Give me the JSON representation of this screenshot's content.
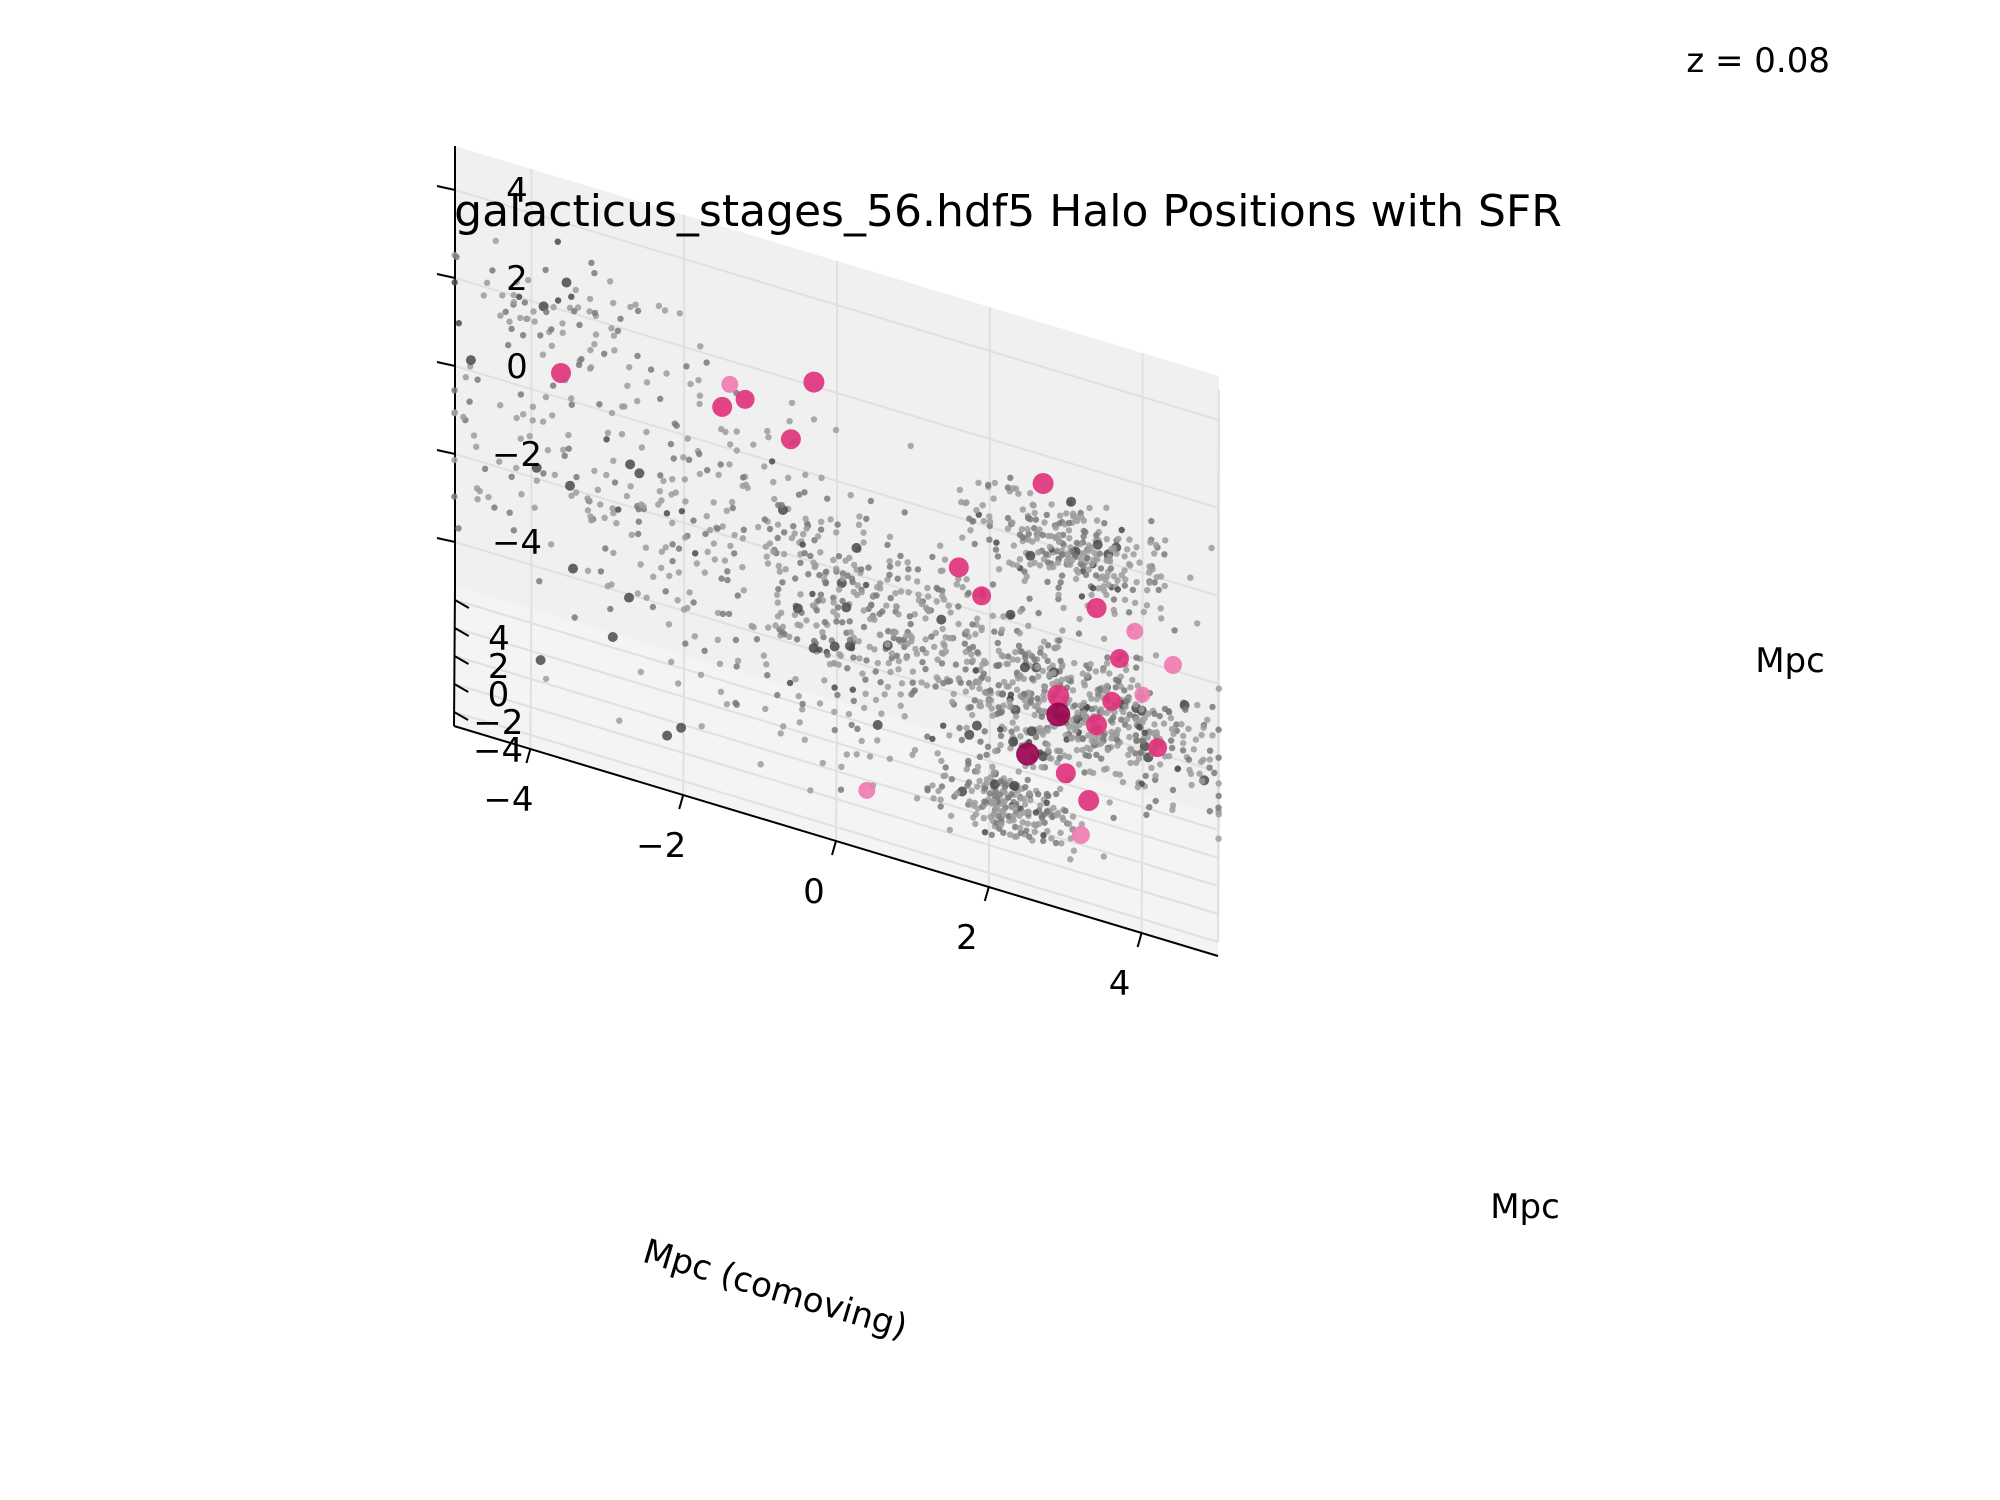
{
  "chart_data": {
    "type": "scatter",
    "projection": "3d",
    "title": "galacticus_stages_56.hdf5 Halo Positions with SFR",
    "annotation": "z = 0.08",
    "xlabel": "Mpc (comoving)",
    "ylabel": "Mpc",
    "zlabel": "Mpc",
    "xlim": [
      -5,
      5
    ],
    "ylim": [
      -5,
      5
    ],
    "zlim": [
      -5,
      5
    ],
    "xticks": [
      "−4",
      "−2",
      "0",
      "2",
      "4"
    ],
    "yticks": [
      "−4",
      "−2",
      "0",
      "2",
      "4"
    ],
    "zticks": [
      "−4",
      "−2",
      "0",
      "2",
      "4"
    ],
    "grid": true,
    "colors": {
      "halo": "#808080",
      "sfr_high": "#99004d",
      "sfr_mid": "#e0307a",
      "sfr_low": "#f07ab0",
      "pane": "#f2f2f2",
      "grid": "#e0e0e0"
    },
    "series": [
      {
        "points": [
          [
            -3.6,
            -4.2,
            3.5
          ],
          [
            -1.4,
            3.0,
            2.1
          ],
          [
            -1.5,
            2.8,
            1.6
          ],
          [
            -1.2,
            3.2,
            1.8
          ],
          [
            -0.6,
            2.6,
            1.4
          ],
          [
            -0.3,
            3.4,
            2.6
          ],
          [
            1.6,
            0.2,
            0.4
          ],
          [
            1.9,
            -0.4,
            0.1
          ],
          [
            2.7,
            3.6,
            1.8
          ],
          [
            3.4,
            3.4,
            -0.6
          ],
          [
            3.7,
            2.8,
            -1.4
          ],
          [
            3.9,
            3.5,
            -0.9
          ],
          [
            4.4,
            3.8,
            -1.5
          ],
          [
            2.9,
            2.6,
            -2.6
          ],
          [
            2.5,
            0.6,
            -3.5
          ],
          [
            2.9,
            2.2,
            -2.9
          ],
          [
            3.4,
            2.6,
            -3.0
          ],
          [
            3.0,
            1.0,
            -3.8
          ],
          [
            4.2,
            2.6,
            -3.1
          ],
          [
            3.3,
            0.8,
            -4.2
          ],
          [
            0.4,
            -2.3,
            -4.5
          ],
          [
            3.2,
            -1.2,
            -4.4
          ],
          [
            3.6,
            2.4,
            -2.3
          ],
          [
            4.0,
            2.6,
            -2.0
          ]
        ],
        "sfr": [
          0.6,
          0.3,
          0.6,
          0.5,
          0.6,
          0.7,
          0.6,
          0.5,
          0.7,
          0.6,
          0.5,
          0.3,
          0.4,
          0.8,
          0.9,
          1.0,
          0.7,
          0.6,
          0.5,
          0.7,
          0.3,
          0.4,
          0.5,
          0.2
        ]
      }
    ]
  }
}
